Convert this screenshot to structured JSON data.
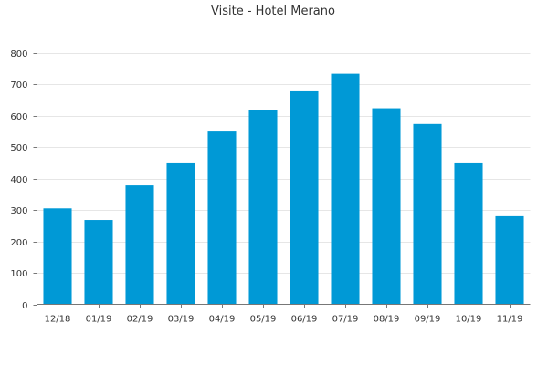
{
  "chart_data": {
    "type": "bar",
    "title": "Visite - Hotel Merano",
    "xlabel": "",
    "ylabel": "",
    "categories": [
      "12/18",
      "01/19",
      "02/19",
      "03/19",
      "04/19",
      "05/19",
      "06/19",
      "07/19",
      "08/19",
      "09/19",
      "10/19",
      "11/19"
    ],
    "values": [
      305,
      268,
      378,
      448,
      549,
      618,
      677,
      733,
      623,
      573,
      448,
      280
    ],
    "ylim": [
      0,
      800
    ],
    "yticks": [
      0,
      100,
      200,
      300,
      400,
      500,
      600,
      700,
      800
    ],
    "grid": true,
    "legend": "none",
    "colors": {
      "bar": "#0099d6",
      "grid": "#e6e6e6",
      "axis": "#777777",
      "text": "#333333"
    }
  }
}
